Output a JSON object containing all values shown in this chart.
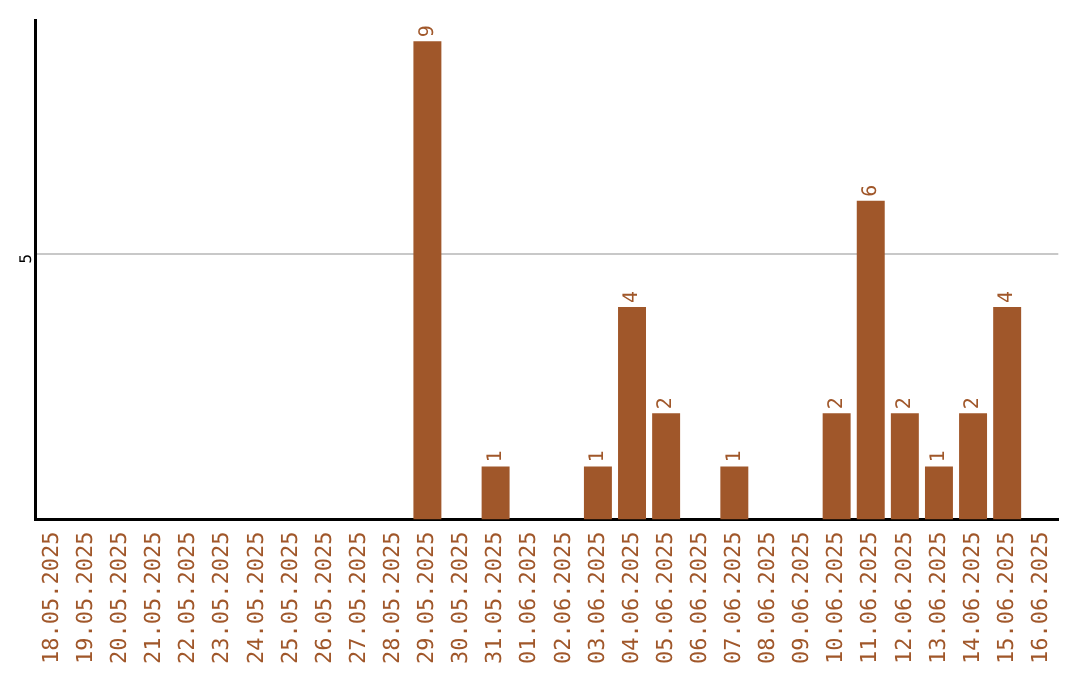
{
  "chart_data": {
    "type": "bar",
    "categories": [
      "18.05.2025",
      "19.05.2025",
      "20.05.2025",
      "21.05.2025",
      "22.05.2025",
      "23.05.2025",
      "24.05.2025",
      "25.05.2025",
      "26.05.2025",
      "27.05.2025",
      "28.05.2025",
      "29.05.2025",
      "30.05.2025",
      "31.05.2025",
      "01.06.2025",
      "02.06.2025",
      "03.06.2025",
      "04.06.2025",
      "05.06.2025",
      "06.06.2025",
      "07.06.2025",
      "08.06.2025",
      "09.06.2025",
      "10.06.2025",
      "11.06.2025",
      "12.06.2025",
      "13.06.2025",
      "14.06.2025",
      "15.06.2025",
      "16.06.2025"
    ],
    "values": [
      0,
      0,
      0,
      0,
      0,
      0,
      0,
      0,
      0,
      0,
      0,
      9,
      0,
      1,
      0,
      0,
      1,
      4,
      2,
      0,
      1,
      0,
      0,
      2,
      6,
      2,
      1,
      2,
      4,
      0
    ],
    "value_labels": [
      null,
      null,
      null,
      null,
      null,
      null,
      null,
      null,
      null,
      null,
      null,
      "9",
      null,
      "1",
      null,
      null,
      "1",
      "4",
      "2",
      null,
      "1",
      null,
      null,
      "2",
      "6",
      "2",
      "1",
      "2",
      "4",
      null
    ],
    "color": "#a0572a",
    "ylim": [
      0,
      9.4
    ],
    "yticks": [
      5
    ],
    "grid": "y",
    "legend": false
  }
}
